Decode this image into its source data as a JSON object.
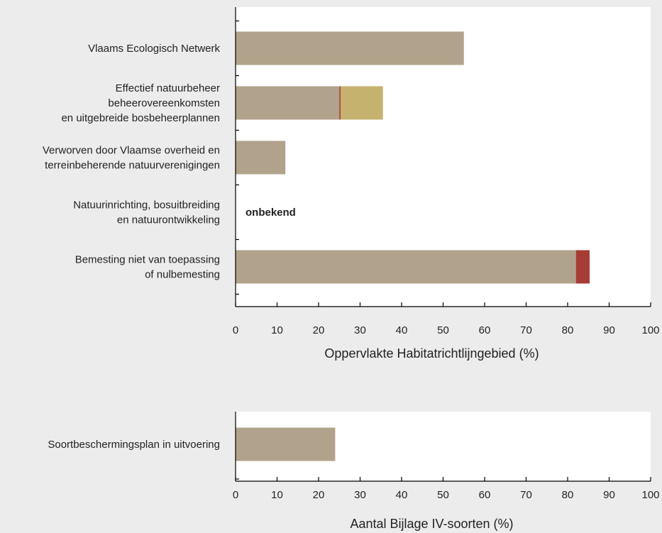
{
  "chart_data": [
    {
      "type": "bar",
      "orientation": "horizontal",
      "stacked": true,
      "categories": [
        [
          "Vlaams Ecologisch Netwerk"
        ],
        [
          "Effectief natuurbeheer",
          "beheerovereenkomsten",
          "en uitgebreide bosbeheerplannen"
        ],
        [
          "Verworven door Vlaamse overheid en",
          "terreinbeherende natuurverenigingen"
        ],
        [
          "Natuurinrichting, bosuitbreiding",
          "en natuurontwikkeling"
        ],
        [
          "Bemesting niet van toepassing",
          "of nulbemesting"
        ]
      ],
      "stacks": [
        [
          {
            "value": 55,
            "color": "#b1a28b"
          }
        ],
        [
          {
            "value": 25,
            "color": "#b1a28b"
          },
          {
            "value": 0.3,
            "color": "#a53d36"
          },
          {
            "value": 10.2,
            "color": "#c5b26f"
          }
        ],
        [
          {
            "value": 12,
            "color": "#b1a28b"
          }
        ],
        [],
        [
          {
            "value": 82,
            "color": "#b1a28b"
          },
          {
            "value": 3.3,
            "color": "#a53d36"
          }
        ]
      ],
      "annotations": [
        {
          "category_index": 3,
          "text": "onbekend"
        }
      ],
      "xlabel": "Oppervlakte Habitatrichtlijngebied (%)",
      "xlim": [
        0,
        100
      ],
      "xticks": [
        "0",
        "10",
        "20",
        "30",
        "40",
        "50",
        "60",
        "70",
        "80",
        "90",
        "100"
      ],
      "grid": false
    },
    {
      "type": "bar",
      "orientation": "horizontal",
      "stacked": true,
      "categories": [
        [
          "Soortbeschermingsplan in uitvoering"
        ]
      ],
      "stacks": [
        [
          {
            "value": 24,
            "color": "#b1a28b"
          }
        ]
      ],
      "annotations": [],
      "xlabel": "Aantal Bijlage IV-soorten (%)",
      "xlim": [
        0,
        100
      ],
      "xticks": [
        "0",
        "10",
        "20",
        "30",
        "40",
        "50",
        "60",
        "70",
        "80",
        "90",
        "100"
      ],
      "grid": false
    }
  ]
}
